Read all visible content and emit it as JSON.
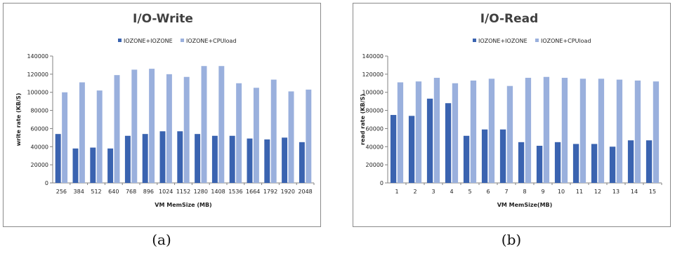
{
  "colors": {
    "series1": "#3a63b0",
    "series2": "#9ab0dd",
    "axis": "#808080",
    "grid": "#d9d9d9"
  },
  "captions": [
    "(a)",
    "(b)"
  ],
  "chart_data": [
    {
      "type": "bar",
      "title": "I/O-Write",
      "xlabel": "VM MemSize (MB)",
      "ylabel": "write rate (KB/S)",
      "ylim": [
        0,
        140000
      ],
      "yticks": [
        0,
        20000,
        40000,
        60000,
        80000,
        100000,
        120000,
        140000
      ],
      "grid": false,
      "legend_position": "top",
      "categories": [
        "256",
        "384",
        "512",
        "640",
        "768",
        "896",
        "1024",
        "1152",
        "1280",
        "1408",
        "1536",
        "1664",
        "1792",
        "1920",
        "2048"
      ],
      "series": [
        {
          "name": "IOZONE+IOZONE",
          "values": [
            54000,
            38000,
            39000,
            38000,
            52000,
            54000,
            57000,
            57000,
            54000,
            52000,
            52000,
            49000,
            48000,
            50000,
            45000
          ]
        },
        {
          "name": "IOZONE+CPUload",
          "values": [
            100000,
            111000,
            102000,
            119000,
            125000,
            126000,
            120000,
            117000,
            129000,
            129000,
            110000,
            105000,
            114000,
            101000,
            103000
          ]
        }
      ]
    },
    {
      "type": "bar",
      "title": "I/O-Read",
      "xlabel": "VM MemSize(MB)",
      "ylabel": "read rate (KB/S)",
      "ylim": [
        0,
        140000
      ],
      "yticks": [
        0,
        20000,
        40000,
        60000,
        80000,
        100000,
        120000,
        140000
      ],
      "grid": false,
      "legend_position": "top",
      "categories": [
        "1",
        "2",
        "3",
        "4",
        "5",
        "6",
        "7",
        "8",
        "9",
        "10",
        "11",
        "12",
        "13",
        "14",
        "15"
      ],
      "series": [
        {
          "name": "IOZONE+IOZONE",
          "values": [
            75000,
            74000,
            93000,
            88000,
            52000,
            59000,
            59000,
            45000,
            41000,
            45000,
            43000,
            43000,
            40000,
            47000,
            47000
          ]
        },
        {
          "name": "IOZONE+CPUload",
          "values": [
            111000,
            112000,
            116000,
            110000,
            113000,
            115000,
            107000,
            116000,
            117000,
            116000,
            115000,
            115000,
            114000,
            113000,
            112000
          ]
        }
      ]
    }
  ]
}
